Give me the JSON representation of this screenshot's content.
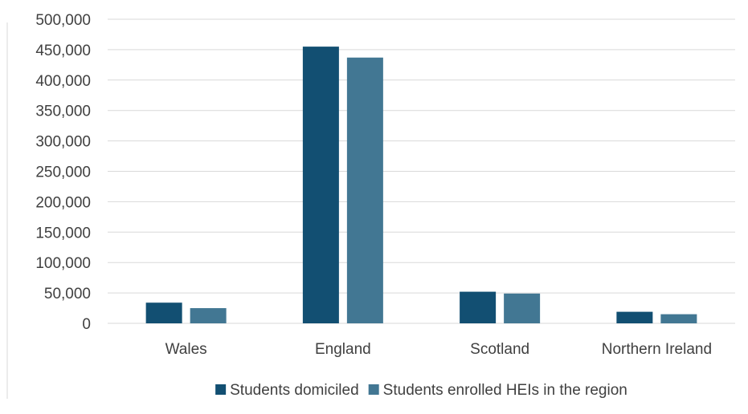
{
  "colors": {
    "series_1": "#124f72",
    "series_2": "#427793",
    "gridline": "#d9d9d9",
    "text": "#404040"
  },
  "chart_data": {
    "type": "bar",
    "title": "",
    "xlabel": "",
    "ylabel": "",
    "categories": [
      "Wales",
      "England",
      "Scotland",
      "Northern Ireland"
    ],
    "series": [
      {
        "name": "Students domiciled",
        "values": [
          34000,
          455000,
          52000,
          19000
        ]
      },
      {
        "name": "Students enrolled HEIs in the region",
        "values": [
          25000,
          437000,
          49000,
          15000
        ]
      }
    ],
    "ylim": [
      0,
      500000
    ],
    "yticks": [
      "0",
      "50,000",
      "100,000",
      "150,000",
      "200,000",
      "250,000",
      "300,000",
      "350,000",
      "400,000",
      "450,000",
      "500,000"
    ],
    "grid": true,
    "legend_position": "bottom"
  }
}
